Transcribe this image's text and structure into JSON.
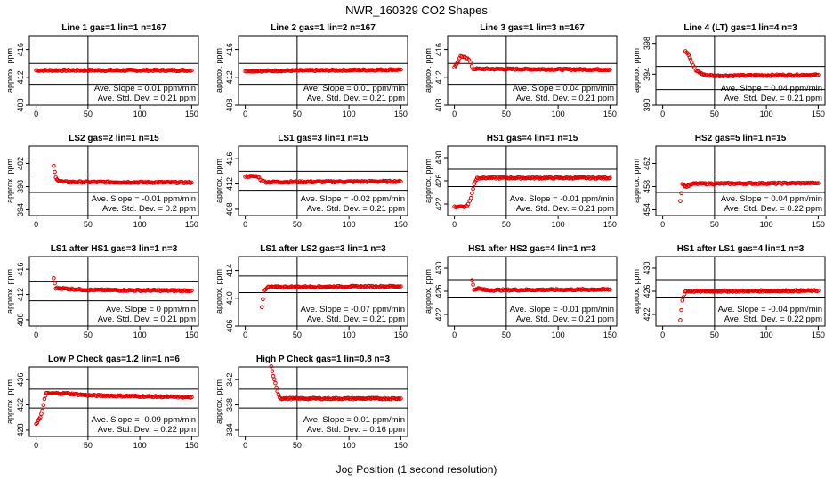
{
  "figure": {
    "title": "NWR_160329  CO2 Shapes",
    "xlabel": "Jog Position (1 second resolution)"
  },
  "chart_data": [
    {
      "type": "scatter",
      "title": "Line 1 gas=1 lin=1 n=167",
      "ylabel": "approx. ppm",
      "xlim": [
        0,
        150
      ],
      "ylim": [
        408,
        418
      ],
      "yticks": [
        408,
        412,
        416
      ],
      "xticks": [
        0,
        50,
        100,
        150
      ],
      "hlines": [
        411,
        414
      ],
      "vline": 50,
      "slope": "Ave. Slope =  0.01  ppm/min",
      "stddev": "Ave. Std. Dev. =  0.21  ppm",
      "points": [
        [
          0,
          413
        ],
        [
          150,
          413
        ]
      ]
    },
    {
      "type": "scatter",
      "title": "Line 2 gas=1 lin=2 n=167",
      "ylabel": "approx. ppm",
      "xlim": [
        0,
        150
      ],
      "ylim": [
        408,
        418
      ],
      "yticks": [
        408,
        412,
        416
      ],
      "xticks": [
        0,
        50,
        100,
        150
      ],
      "hlines": [
        411,
        414
      ],
      "vline": 50,
      "slope": "Ave. Slope =  0.01  ppm/min",
      "stddev": "Ave. Std. Dev. =  0.21  ppm",
      "points": [
        [
          0,
          412.9
        ],
        [
          150,
          413.1
        ]
      ]
    },
    {
      "type": "scatter",
      "title": "Line 3 gas=1 lin=3 n=167",
      "ylabel": "approx. ppm",
      "xlim": [
        0,
        150
      ],
      "ylim": [
        408,
        418
      ],
      "yticks": [
        408,
        412,
        416
      ],
      "xticks": [
        0,
        50,
        100,
        150
      ],
      "hlines": [
        411,
        414
      ],
      "vline": 50,
      "slope": "Ave. Slope =  0.04  ppm/min",
      "stddev": "Ave. Std. Dev. =  0.21  ppm",
      "points": [
        [
          0,
          413.5
        ],
        [
          3,
          414
        ],
        [
          6,
          415
        ],
        [
          10,
          415
        ],
        [
          14,
          414.5
        ],
        [
          18,
          413.2
        ],
        [
          150,
          413.1
        ]
      ]
    },
    {
      "type": "scatter",
      "title": "Line 4 (LT) gas=1 lin=4 n=3",
      "ylabel": "approx. ppm",
      "xlim": [
        0,
        150
      ],
      "ylim": [
        390,
        399
      ],
      "yticks": [
        390,
        394,
        398
      ],
      "xticks": [
        0,
        50,
        100,
        150
      ],
      "hlines": [
        392,
        395
      ],
      "vline": 50,
      "slope": "Ave. Slope =  0.04  ppm/min",
      "stddev": "Ave. Std. Dev. =  0.21  ppm",
      "points": [
        [
          22,
          397
        ],
        [
          25,
          396.5
        ],
        [
          28,
          395.5
        ],
        [
          32,
          394.5
        ],
        [
          40,
          393.9
        ],
        [
          50,
          393.8
        ],
        [
          150,
          393.9
        ]
      ]
    },
    {
      "type": "scatter",
      "title": "LS2 gas=2 lin=1 n=15",
      "ylabel": "approx. ppm",
      "xlim": [
        0,
        150
      ],
      "ylim": [
        393,
        405
      ],
      "yticks": [
        394,
        398,
        402
      ],
      "xticks": [
        0,
        50,
        100,
        150
      ],
      "hlines": [
        397,
        400
      ],
      "vline": 50,
      "slope": "Ave. Slope =  -0.01  ppm/min",
      "stddev": "Ave. Std. Dev. =  0.2  ppm",
      "points": [
        [
          17,
          401.5
        ],
        [
          19,
          399.5
        ],
        [
          22,
          399
        ],
        [
          26,
          398.8
        ],
        [
          150,
          398.7
        ]
      ]
    },
    {
      "type": "scatter",
      "title": "LS1 gas=3 lin=1 n=15",
      "ylabel": "approx. ppm",
      "xlim": [
        0,
        150
      ],
      "ylim": [
        407,
        418
      ],
      "yticks": [
        408,
        412,
        416
      ],
      "xticks": [
        0,
        50,
        100,
        150
      ],
      "hlines": [
        411,
        414
      ],
      "vline": 50,
      "slope": "Ave. Slope =  -0.02  ppm/min",
      "stddev": "Ave. Std. Dev. =  0.21  ppm",
      "points": [
        [
          0,
          413.2
        ],
        [
          12,
          413.2
        ],
        [
          16,
          412.5
        ],
        [
          20,
          412.3
        ],
        [
          150,
          412.4
        ]
      ]
    },
    {
      "type": "scatter",
      "title": "HS1 gas=4 lin=1 n=15",
      "ylabel": "approx. ppm",
      "xlim": [
        0,
        150
      ],
      "ylim": [
        420,
        432
      ],
      "yticks": [
        422,
        426,
        430
      ],
      "xticks": [
        0,
        50,
        100,
        150
      ],
      "hlines": [
        425,
        428
      ],
      "vline": 50,
      "slope": "Ave. Slope =  -0.01  ppm/min",
      "stddev": "Ave. Std. Dev. =  0.21  ppm",
      "points": [
        [
          0,
          421.5
        ],
        [
          12,
          421.6
        ],
        [
          16,
          423
        ],
        [
          19,
          425.5
        ],
        [
          22,
          426.5
        ],
        [
          150,
          426.5
        ]
      ]
    },
    {
      "type": "scatter",
      "title": "HS2 gas=5 lin=1 n=15",
      "ylabel": "approx. ppm",
      "xlim": [
        0,
        150
      ],
      "ylim": [
        453,
        465
      ],
      "yticks": [
        454,
        458,
        462
      ],
      "xticks": [
        0,
        50,
        100,
        150
      ],
      "hlines": [
        457,
        460
      ],
      "vline": 50,
      "slope": "Ave. Slope =  0.04  ppm/min",
      "stddev": "Ave. Std. Dev. =  0.22  ppm",
      "points": [
        [
          17,
          455.5
        ],
        [
          19,
          458.5
        ],
        [
          22,
          458
        ],
        [
          30,
          458.5
        ],
        [
          150,
          458.6
        ]
      ]
    },
    {
      "type": "scatter",
      "title": "LS1 after HS1 gas=3 lin=1 n=3",
      "ylabel": "approx. ppm",
      "xlim": [
        0,
        150
      ],
      "ylim": [
        407,
        418
      ],
      "yticks": [
        408,
        412,
        416
      ],
      "xticks": [
        0,
        50,
        100,
        150
      ],
      "hlines": [
        411,
        414
      ],
      "vline": 50,
      "slope": "Ave. Slope =  0  ppm/min",
      "stddev": "Ave. Std. Dev. =  0.21  ppm",
      "points": [
        [
          17,
          414.5
        ],
        [
          19,
          413
        ],
        [
          50,
          412.7
        ],
        [
          150,
          412.6
        ]
      ]
    },
    {
      "type": "scatter",
      "title": "LS1 after LS2 gas=3 lin=1 n=3",
      "ylabel": "approx. ppm",
      "xlim": [
        0,
        150
      ],
      "ylim": [
        406,
        416
      ],
      "yticks": [
        406,
        410,
        414
      ],
      "xticks": [
        0,
        50,
        100,
        150
      ],
      "hlines": [
        410.8,
        413.2
      ],
      "vline": 50,
      "slope": "Ave. Slope =  -0.07  ppm/min",
      "stddev": "Ave. Std. Dev. =  0.21  ppm",
      "points": [
        [
          16,
          408.8
        ],
        [
          18,
          411
        ],
        [
          22,
          411.6
        ],
        [
          150,
          411.7
        ]
      ]
    },
    {
      "type": "scatter",
      "title": "HS1 after HS2 gas=4 lin=1 n=3",
      "ylabel": "approx. ppm",
      "xlim": [
        0,
        150
      ],
      "ylim": [
        420,
        432
      ],
      "yticks": [
        422,
        426,
        430
      ],
      "xticks": [
        0,
        50,
        100,
        150
      ],
      "hlines": [
        425,
        428
      ],
      "vline": 50,
      "slope": "Ave. Slope =  -0.01  ppm/min",
      "stddev": "Ave. Std. Dev. =  0.21  ppm",
      "points": [
        [
          17,
          428
        ],
        [
          19,
          426.2
        ],
        [
          22,
          426.5
        ],
        [
          30,
          426.2
        ],
        [
          150,
          426.3
        ]
      ]
    },
    {
      "type": "scatter",
      "title": "HS1 after LS1 gas=4 lin=1 n=3",
      "ylabel": "approx. ppm",
      "xlim": [
        0,
        150
      ],
      "ylim": [
        420,
        432
      ],
      "yticks": [
        422,
        426,
        430
      ],
      "xticks": [
        0,
        50,
        100,
        150
      ],
      "hlines": [
        425,
        428
      ],
      "vline": 50,
      "slope": "Ave. Slope =  -0.04  ppm/min",
      "stddev": "Ave. Std. Dev. =  0.22  ppm",
      "points": [
        [
          17,
          421
        ],
        [
          19,
          424.5
        ],
        [
          22,
          426
        ],
        [
          150,
          426.1
        ]
      ]
    },
    {
      "type": "scatter",
      "title": "Low P Check gas=1.2 lin=1 n=6",
      "ylabel": "approx. ppm",
      "xlim": [
        0,
        150
      ],
      "ylim": [
        427,
        438
      ],
      "yticks": [
        428,
        432,
        436
      ],
      "xticks": [
        0,
        50,
        100,
        150
      ],
      "hlines": [
        431.5,
        434.5
      ],
      "vline": 50,
      "slope": "Ave. Slope =  -0.09  ppm/min",
      "stddev": "Ave. Std. Dev. =  0.22  ppm",
      "points": [
        [
          0,
          429
        ],
        [
          2,
          429.5
        ],
        [
          4,
          430
        ],
        [
          6,
          431
        ],
        [
          8,
          433
        ],
        [
          10,
          433.8
        ],
        [
          30,
          433.8
        ],
        [
          50,
          433.5
        ],
        [
          150,
          433.2
        ]
      ]
    },
    {
      "type": "scatter",
      "title": "High P Check gas=1 lin=0.8 n=3",
      "ylabel": "approx. ppm",
      "xlim": [
        0,
        150
      ],
      "ylim": [
        333,
        344
      ],
      "yticks": [
        334,
        338,
        342
      ],
      "xticks": [
        0,
        50,
        100,
        150
      ],
      "hlines": [
        337.5,
        340.5
      ],
      "vline": 50,
      "slope": "Ave. Slope =  0.01  ppm/min",
      "stddev": "Ave. Std. Dev. =  0.16  ppm",
      "points": [
        [
          25,
          344
        ],
        [
          27,
          342.5
        ],
        [
          29,
          341.5
        ],
        [
          31,
          340.2
        ],
        [
          33,
          339.2
        ],
        [
          35,
          339
        ],
        [
          50,
          339
        ],
        [
          150,
          339
        ]
      ]
    }
  ]
}
